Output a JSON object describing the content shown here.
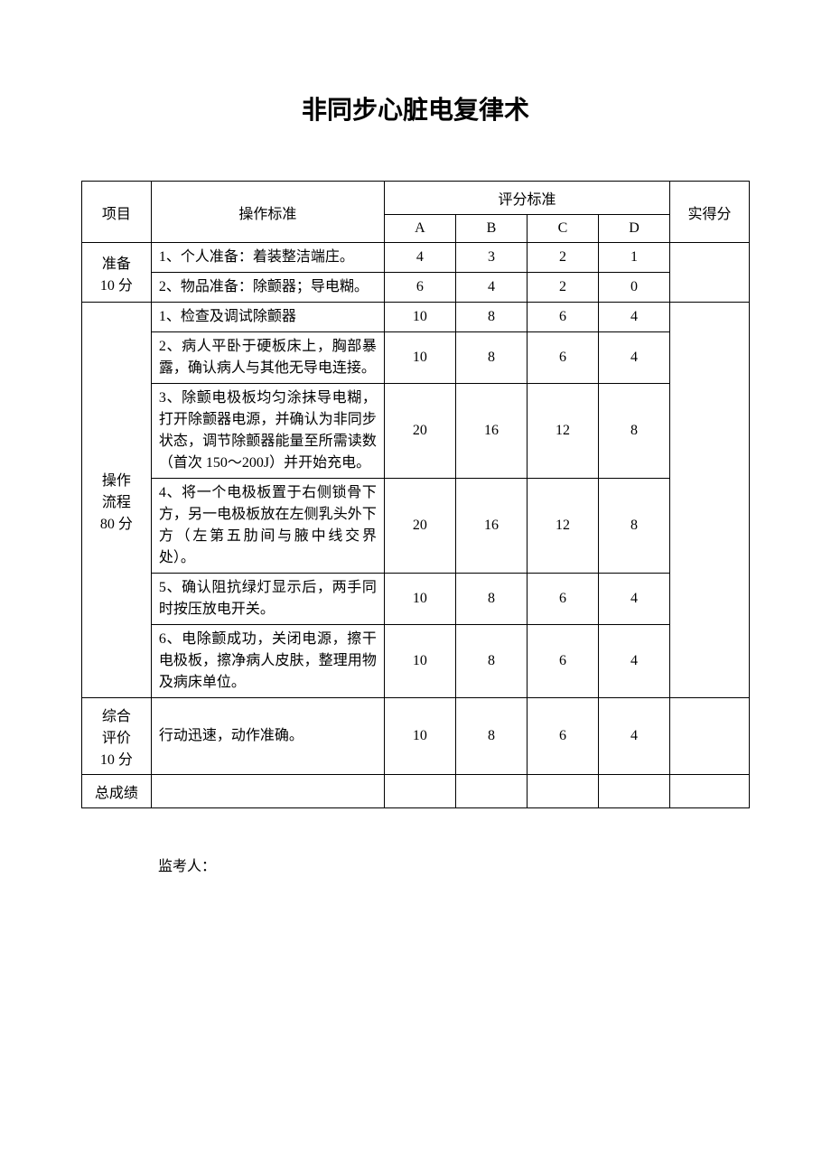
{
  "title": "非同步心脏电复律术",
  "headers": {
    "item": "项目",
    "operation": "操作标准",
    "scoring": "评分标准",
    "a": "A",
    "b": "B",
    "c": "C",
    "d": "D",
    "actual": "实得分"
  },
  "sections": [
    {
      "label": "准备\n10 分",
      "rows": [
        {
          "op": "1、个人准备：着装整洁端庄。",
          "a": "4",
          "b": "3",
          "c": "2",
          "d": "1"
        },
        {
          "op": "2、物品准备：除颤器；导电糊。",
          "a": "6",
          "b": "4",
          "c": "2",
          "d": "0"
        }
      ]
    },
    {
      "label": "操作\n流程\n80 分",
      "rows": [
        {
          "op": "1、检查及调试除颤器",
          "a": "10",
          "b": "8",
          "c": "6",
          "d": "4"
        },
        {
          "op": "2、病人平卧于硬板床上，胸部暴露，确认病人与其他无导电连接。",
          "a": "10",
          "b": "8",
          "c": "6",
          "d": "4"
        },
        {
          "op": "3、除颤电极板均匀涂抹导电糊，打开除颤器电源，并确认为非同步状态，调节除颤器能量至所需读数（首次 150～200J）并开始充电。",
          "a": "20",
          "b": "16",
          "c": "12",
          "d": "8"
        },
        {
          "op": "4、将一个电极板置于右侧锁骨下方，另一电极板放在左侧乳头外下方（左第五肋间与腋中线交界处）。",
          "a": "20",
          "b": "16",
          "c": "12",
          "d": "8"
        },
        {
          "op": "5、确认阻抗绿灯显示后，两手同时按压放电开关。",
          "a": "10",
          "b": "8",
          "c": "6",
          "d": "4"
        },
        {
          "op": "6、电除颤成功，关闭电源，擦干电极板，擦净病人皮肤，整理用物及病床单位。",
          "a": "10",
          "b": "8",
          "c": "6",
          "d": "4"
        }
      ]
    },
    {
      "label": "综合\n评价\n10 分",
      "rows": [
        {
          "op": "行动迅速，动作准确。",
          "a": "10",
          "b": "8",
          "c": "6",
          "d": "4"
        }
      ]
    }
  ],
  "total_label": "总成绩",
  "footer_label": "监考人："
}
